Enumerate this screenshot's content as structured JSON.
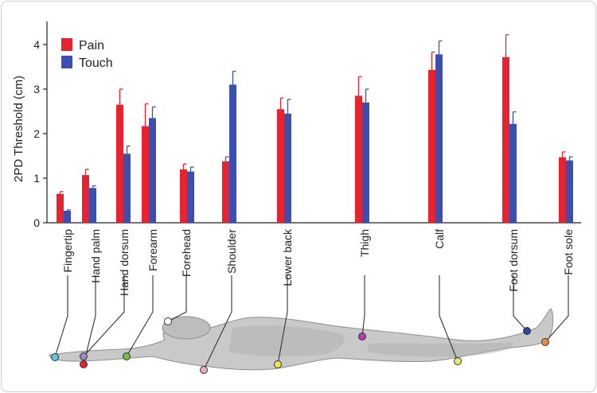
{
  "chart_data": {
    "type": "bar",
    "ylabel": "2PD Threshold (cm)",
    "ylim": [
      0,
      4.4
    ],
    "yticks": [
      "0",
      "1",
      "2",
      "3",
      "4"
    ],
    "legend_position": "top-left",
    "categories": [
      "Fingertip",
      "Hand palm",
      "Hand dorsum",
      "Forearm",
      "Forehead",
      "Shoulder",
      "Lower back",
      "Thigh",
      "Calf",
      "Foot dorsum",
      "Foot sole"
    ],
    "series": [
      {
        "name": "Pain",
        "color": "#e8232f",
        "values": [
          0.65,
          1.07,
          2.65,
          2.17,
          1.2,
          1.38,
          2.55,
          2.85,
          3.43,
          3.72,
          1.47
        ],
        "errors": [
          0.05,
          0.13,
          0.35,
          0.5,
          0.12,
          0.1,
          0.25,
          0.43,
          0.4,
          0.5,
          0.12
        ]
      },
      {
        "name": "Touch",
        "color": "#3a4fb0",
        "values": [
          0.27,
          0.78,
          1.55,
          2.35,
          1.15,
          3.1,
          2.45,
          2.7,
          3.78,
          2.22,
          1.4
        ],
        "errors": [
          0.02,
          0.05,
          0.17,
          0.25,
          0.1,
          0.3,
          0.32,
          0.3,
          0.3,
          0.27,
          0.08
        ]
      }
    ],
    "grid": false
  },
  "figure": {
    "marker_colors": [
      "#5cc8e0",
      "#e8232f",
      "#9a8ac8",
      "#6ec04a",
      "#ffffff",
      "#f0a8c8",
      "#e8e84a",
      "#b83ab8",
      "#e8e86a",
      "#2a4aa0",
      "#f08a3a"
    ]
  }
}
